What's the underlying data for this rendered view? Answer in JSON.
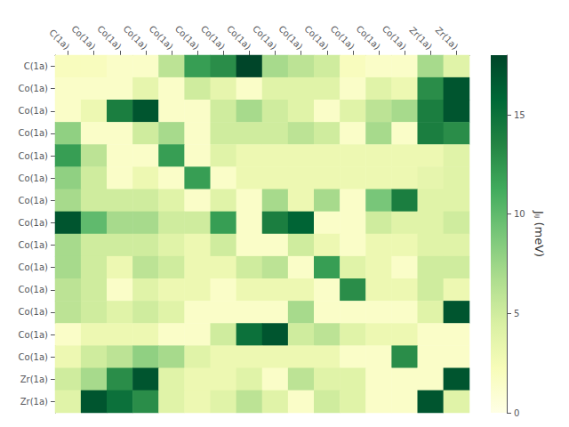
{
  "chart_data": {
    "type": "heatmap",
    "row_labels": [
      "C(1a)",
      "Co(1a)",
      "Co(1a)",
      "Co(1a)",
      "Co(1a)",
      "Co(1a)",
      "Co(1a)",
      "Co(1a)",
      "Co(1a)",
      "Co(1a)",
      "Co(1a)",
      "Co(1a)",
      "Co(1a)",
      "Co(1a)",
      "Zr(1a)",
      "Zr(1a)"
    ],
    "col_labels": [
      "C(1a)",
      "Co(1a)",
      "Co(1a)",
      "Co(1a)",
      "Co(1a)",
      "Co(1a)",
      "Co(1a)",
      "Co(1a)",
      "Co(1a)",
      "Co(1a)",
      "Co(1a)",
      "Co(1a)",
      "Co(1a)",
      "Co(1a)",
      "Zr(1a)",
      "Zr(1a)"
    ],
    "values": [
      [
        2.0,
        2.0,
        1.5,
        1.5,
        6.0,
        12.0,
        13.0,
        18.0,
        7.0,
        6.0,
        5.0,
        2.0,
        1.5,
        1.5,
        7.0,
        4.0
      ],
      [
        1.5,
        1.5,
        1.5,
        3.5,
        1.5,
        5.0,
        3.5,
        1.5,
        4.0,
        4.0,
        4.0,
        1.5,
        4.0,
        3.0,
        13.0,
        17.0
      ],
      [
        1.5,
        3.0,
        14.0,
        17.0,
        1.5,
        1.5,
        5.0,
        7.0,
        5.0,
        4.0,
        1.5,
        4.0,
        6.0,
        7.0,
        14.0,
        17.0
      ],
      [
        8.0,
        1.5,
        1.5,
        5.0,
        7.0,
        1.5,
        5.0,
        5.0,
        5.0,
        6.0,
        5.0,
        1.5,
        7.0,
        1.5,
        14.0,
        13.0
      ],
      [
        12.0,
        6.0,
        1.5,
        1.5,
        12.0,
        1.5,
        4.0,
        3.0,
        3.0,
        3.0,
        3.0,
        3.0,
        3.0,
        3.0,
        3.0,
        4.0
      ],
      [
        8.0,
        5.0,
        1.5,
        3.0,
        1.5,
        12.0,
        1.5,
        3.0,
        3.0,
        3.0,
        3.0,
        3.0,
        3.0,
        3.0,
        3.5,
        4.0
      ],
      [
        7.0,
        5.0,
        5.0,
        5.0,
        4.0,
        1.5,
        4.0,
        1.5,
        7.0,
        3.0,
        7.0,
        1.5,
        9.0,
        14.0,
        4.0,
        4.0
      ],
      [
        17.0,
        10.0,
        7.0,
        7.0,
        5.0,
        5.0,
        12.0,
        1.5,
        14.0,
        16.0,
        1.5,
        1.5,
        5.0,
        4.0,
        4.0,
        5.0
      ],
      [
        7.0,
        5.0,
        5.0,
        5.0,
        4.0,
        3.0,
        5.0,
        1.5,
        1.5,
        5.0,
        3.0,
        1.5,
        3.0,
        3.0,
        4.0,
        4.0
      ],
      [
        7.0,
        5.0,
        3.0,
        6.0,
        5.0,
        3.0,
        3.0,
        5.0,
        6.0,
        1.5,
        12.0,
        4.0,
        3.0,
        1.5,
        5.0,
        5.0
      ],
      [
        6.0,
        5.0,
        1.5,
        4.0,
        3.0,
        3.0,
        1.5,
        3.0,
        3.0,
        3.0,
        1.5,
        13.0,
        3.0,
        3.0,
        5.0,
        3.0
      ],
      [
        6.0,
        5.0,
        4.0,
        5.0,
        4.0,
        1.5,
        1.5,
        1.5,
        1.5,
        7.0,
        1.5,
        1.5,
        1.5,
        1.5,
        4.0,
        17.0
      ],
      [
        1.5,
        3.0,
        3.0,
        3.0,
        1.5,
        1.5,
        5.0,
        15.0,
        17.0,
        5.0,
        6.0,
        4.0,
        3.0,
        3.0,
        1.5,
        1.5
      ],
      [
        3.0,
        5.0,
        6.0,
        8.0,
        7.0,
        4.0,
        3.0,
        3.0,
        3.0,
        3.0,
        3.0,
        1.5,
        1.5,
        13.0,
        1.5,
        1.5
      ],
      [
        5.0,
        7.0,
        13.0,
        17.0,
        4.0,
        3.0,
        3.0,
        4.0,
        1.5,
        6.0,
        4.0,
        4.0,
        1.5,
        1.5,
        1.5,
        17.0
      ],
      [
        4.0,
        17.0,
        15.0,
        13.0,
        4.0,
        3.0,
        4.0,
        6.0,
        4.0,
        1.5,
        5.0,
        4.0,
        1.5,
        1.5,
        17.0,
        4.0
      ]
    ],
    "colorbar_label": "Jᵢⱼ (meV)",
    "clim": [
      0,
      18
    ],
    "cticks": [
      0,
      5,
      10,
      15
    ],
    "color": [
      "#ffffe5",
      "#f7fcb9",
      "#d9f0a3",
      "#addd8e",
      "#78c679",
      "#41ab5d",
      "#238443",
      "#006837",
      "#004529"
    ]
  }
}
